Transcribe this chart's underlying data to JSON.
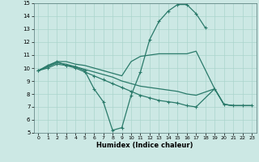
{
  "xlabel": "Humidex (Indice chaleur)",
  "bg_color": "#cce8e4",
  "grid_color": "#aad4cc",
  "line_color": "#2a7a6a",
  "markersize": 2.5,
  "linewidth": 0.9,
  "xlim": [
    -0.5,
    23.5
  ],
  "ylim": [
    5,
    15
  ],
  "xticks": [
    0,
    1,
    2,
    3,
    4,
    5,
    6,
    7,
    8,
    9,
    10,
    11,
    12,
    13,
    14,
    15,
    16,
    17,
    18,
    19,
    20,
    21,
    22,
    23
  ],
  "yticks": [
    5,
    6,
    7,
    8,
    9,
    10,
    11,
    12,
    13,
    14,
    15
  ],
  "line1_x": [
    0,
    1,
    2,
    3,
    4,
    5,
    6,
    7,
    8,
    9,
    10,
    11,
    12,
    13,
    14,
    15,
    16,
    17,
    18
  ],
  "line1_y": [
    9.8,
    10.2,
    10.5,
    10.2,
    10.1,
    9.8,
    8.4,
    7.4,
    5.2,
    5.4,
    7.9,
    9.7,
    12.2,
    13.6,
    14.4,
    14.9,
    14.9,
    14.2,
    13.1
  ],
  "line2_x": [
    0,
    1,
    2,
    3,
    4,
    5,
    6,
    7,
    8,
    9,
    10,
    11,
    12,
    13,
    14,
    15,
    16,
    17,
    19,
    20,
    21,
    22,
    23
  ],
  "line2_y": [
    9.8,
    10.1,
    10.5,
    10.5,
    10.3,
    10.2,
    10.0,
    9.8,
    9.6,
    9.4,
    10.5,
    10.9,
    11.0,
    11.1,
    11.1,
    11.1,
    11.1,
    11.3,
    8.4,
    7.2,
    7.1,
    7.1,
    7.1
  ],
  "line3_x": [
    0,
    1,
    2,
    3,
    4,
    5,
    6,
    7,
    8,
    9,
    10,
    11,
    12,
    13,
    14,
    15,
    16,
    17,
    19,
    20,
    21,
    22,
    23
  ],
  "line3_y": [
    9.8,
    10.1,
    10.4,
    10.3,
    10.1,
    9.9,
    9.7,
    9.5,
    9.3,
    9.0,
    8.8,
    8.6,
    8.5,
    8.4,
    8.3,
    8.2,
    8.0,
    7.9,
    8.4,
    7.2,
    7.1,
    7.1,
    7.1
  ],
  "line4_x": [
    0,
    1,
    2,
    3,
    4,
    5,
    6,
    7,
    8,
    9,
    10,
    11,
    12,
    13,
    14,
    15,
    16,
    17,
    19,
    20,
    21,
    22,
    23
  ],
  "line4_y": [
    9.8,
    10.0,
    10.3,
    10.2,
    10.0,
    9.7,
    9.4,
    9.1,
    8.8,
    8.5,
    8.2,
    7.9,
    7.7,
    7.5,
    7.4,
    7.3,
    7.1,
    7.0,
    8.4,
    7.2,
    7.1,
    7.1,
    7.1
  ]
}
